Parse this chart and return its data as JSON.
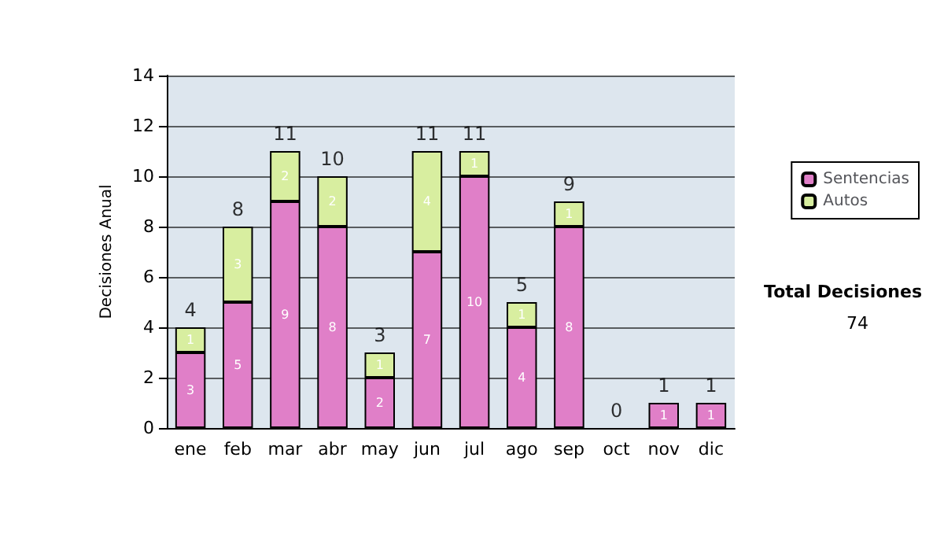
{
  "chart_data": {
    "type": "bar",
    "stacked": true,
    "ylabel": "Decisiones Anual",
    "categories": [
      "ene",
      "feb",
      "mar",
      "abr",
      "may",
      "jun",
      "jul",
      "ago",
      "sep",
      "oct",
      "nov",
      "dic"
    ],
    "series": [
      {
        "name": "Sentencias",
        "color": "#e07fc8",
        "values": [
          3,
          5,
          9,
          8,
          2,
          7,
          10,
          4,
          8,
          0,
          1,
          1
        ],
        "value_labels": [
          "3",
          "5",
          "9",
          "8",
          "2",
          "7",
          "10",
          "4",
          "8",
          null,
          "1",
          "1"
        ]
      },
      {
        "name": "Autos",
        "color": "#d8eea0",
        "values": [
          1,
          3,
          2,
          2,
          1,
          4,
          1,
          1,
          1,
          0,
          0,
          0
        ],
        "value_labels": [
          "1",
          "3",
          "2",
          "2",
          "1",
          "4",
          "1",
          "1",
          "1",
          null,
          null,
          null
        ]
      }
    ],
    "totals": [
      "4",
      "8",
      "11",
      "10",
      "3",
      "11",
      "11",
      "5",
      "9",
      "0",
      "1",
      "1"
    ],
    "ylim": [
      0,
      14
    ],
    "yticks": [
      0,
      2,
      4,
      6,
      8,
      10,
      12,
      14
    ],
    "grid": "y",
    "legend": "right",
    "annotations": [
      "Total Decisiones",
      "74"
    ]
  }
}
